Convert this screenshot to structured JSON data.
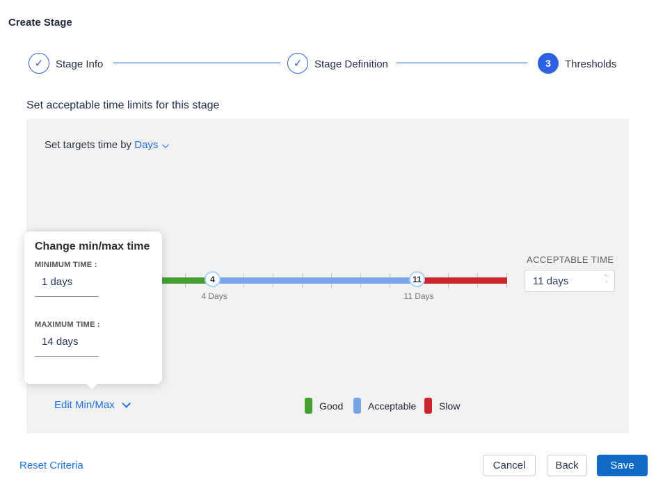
{
  "colors": {
    "accent_blue": "#2d63e2",
    "link_blue": "#2170e8",
    "save_blue": "#0f69c5",
    "panel_gray": "#f2f2f2",
    "good_green": "#44a131",
    "acceptable_blue": "#78a4ea",
    "slow_red": "#cb242b"
  },
  "page": {
    "title": "Create Stage"
  },
  "stepper": {
    "steps": [
      {
        "label": "Stage Info",
        "state": "done",
        "icon": "check"
      },
      {
        "label": "Stage Definition",
        "state": "done",
        "icon": "check"
      },
      {
        "label": "Thresholds",
        "state": "active",
        "number": "3"
      }
    ]
  },
  "section": {
    "title": "Set acceptable time limits for this stage"
  },
  "panel": {
    "targets_prefix": "Set targets time by",
    "targets_unit": "Days",
    "acceptable": {
      "label": "ACCEPTABLE TIME",
      "value": "11 days"
    },
    "edit_minmax": "Edit Min/Max",
    "legend": [
      {
        "label": "Good",
        "color": "#44a131"
      },
      {
        "label": "Acceptable",
        "color": "#78a4ea"
      },
      {
        "label": "Slow",
        "color": "#cb242b"
      }
    ]
  },
  "slider": {
    "unit": "Days",
    "min_day": 0,
    "max_day": 14,
    "handles": [
      {
        "value": "4",
        "label": "4 Days"
      },
      {
        "value": "11",
        "label": "11 Days"
      }
    ],
    "segments": [
      {
        "name": "good",
        "from": 0,
        "to": 4,
        "color": "#44a131"
      },
      {
        "name": "acceptable",
        "from": 4,
        "to": 11,
        "color": "#78a4ea"
      },
      {
        "name": "slow",
        "from": 11,
        "to": 14,
        "color": "#cb242b"
      }
    ]
  },
  "popup": {
    "title": "Change min/max time",
    "min_label": "MINIMUM TIME :",
    "min_value": "1 days",
    "max_label": "MAXIMUM TIME :",
    "max_value": "14 days"
  },
  "footer": {
    "reset": "Reset Criteria",
    "cancel": "Cancel",
    "back": "Back",
    "save": "Save"
  }
}
